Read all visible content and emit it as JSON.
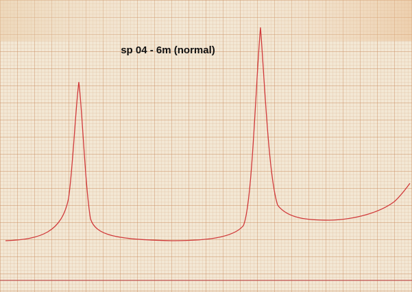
{
  "chart_title": "sp 04 - 6m (normal)"
}
